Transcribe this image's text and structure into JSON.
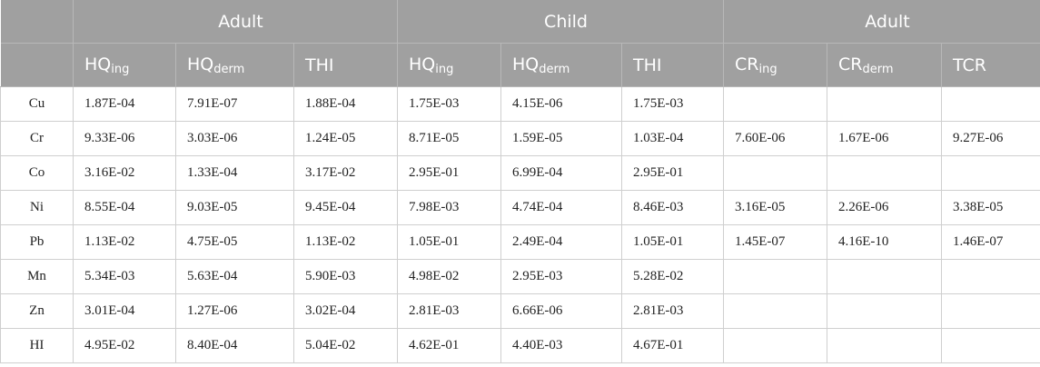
{
  "table": {
    "groups": [
      "Adult",
      "Child",
      "Adult"
    ],
    "columns": [
      {
        "base": "HQ",
        "sub": "ing"
      },
      {
        "base": "HQ",
        "sub": "derm"
      },
      {
        "base": "THI"
      },
      {
        "base": "HQ",
        "sub": "ing"
      },
      {
        "base": "HQ",
        "sub": "derm"
      },
      {
        "base": "THI"
      },
      {
        "base": "CR",
        "sub": "ing"
      },
      {
        "base": "CR",
        "sub": "derm"
      },
      {
        "base": "TCR"
      }
    ],
    "rows": [
      {
        "label": "Cu",
        "values": [
          "1.87E-04",
          "7.91E-07",
          "1.88E-04",
          "1.75E-03",
          "4.15E-06",
          "1.75E-03"
        ]
      },
      {
        "label": "Cr",
        "values": [
          "9.33E-06",
          "3.03E-06",
          "1.24E-05",
          "8.71E-05",
          "1.59E-05",
          "1.03E-04",
          "7.60E-06",
          "1.67E-06",
          "9.27E-06"
        ]
      },
      {
        "label": "Co",
        "values": [
          "3.16E-02",
          "1.33E-04",
          "3.17E-02",
          "2.95E-01",
          "6.99E-04",
          "2.95E-01"
        ]
      },
      {
        "label": "Ni",
        "values": [
          "8.55E-04",
          "9.03E-05",
          "9.45E-04",
          "7.98E-03",
          "4.74E-04",
          "8.46E-03",
          "3.16E-05",
          "2.26E-06",
          "3.38E-05"
        ]
      },
      {
        "label": "Pb",
        "values": [
          "1.13E-02",
          "4.75E-05",
          "1.13E-02",
          "1.05E-01",
          "2.49E-04",
          "1.05E-01",
          "1.45E-07",
          "4.16E-10",
          "1.46E-07"
        ]
      },
      {
        "label": "Mn",
        "values": [
          "5.34E-03",
          "5.63E-04",
          "5.90E-03",
          "4.98E-02",
          "2.95E-03",
          "5.28E-02"
        ]
      },
      {
        "label": "Zn",
        "values": [
          "3.01E-04",
          "1.27E-06",
          "3.02E-04",
          "2.81E-03",
          "6.66E-06",
          "2.81E-03"
        ]
      },
      {
        "label": "HI",
        "values": [
          "4.95E-02",
          "8.40E-04",
          "5.04E-02",
          "4.62E-01",
          "4.40E-03",
          "4.67E-01"
        ]
      }
    ]
  }
}
